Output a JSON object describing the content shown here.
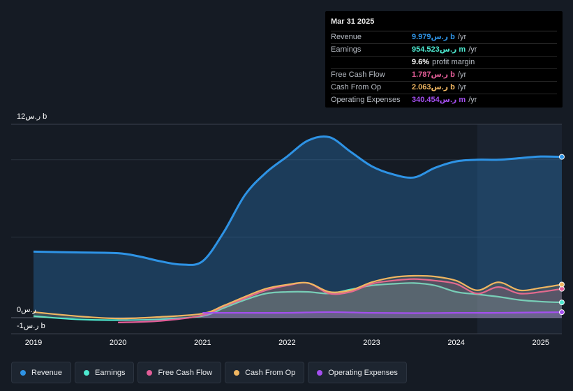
{
  "tooltip": {
    "date": "Mar 31 2025",
    "rows": [
      {
        "label": "Revenue",
        "value": "9.979ر.س b",
        "unit": "/yr",
        "color": "#2e93e5"
      },
      {
        "label": "Earnings",
        "value": "954.523ر.س m",
        "unit": "/yr",
        "color": "#4de8cf"
      },
      {
        "label": "",
        "value": "9.6%",
        "unit": "profit margin",
        "color": "#ffffff"
      },
      {
        "label": "Free Cash Flow",
        "value": "1.787ر.س b",
        "unit": "/yr",
        "color": "#e25d97"
      },
      {
        "label": "Cash From Op",
        "value": "2.063ر.س b",
        "unit": "/yr",
        "color": "#f0b661"
      },
      {
        "label": "Operating Expenses",
        "value": "340.454ر.س m",
        "unit": "/yr",
        "color": "#a44ff0"
      }
    ]
  },
  "legend": [
    {
      "label": "Revenue",
      "color": "#2e93e5"
    },
    {
      "label": "Earnings",
      "color": "#4de8cf"
    },
    {
      "label": "Free Cash Flow",
      "color": "#e25d97"
    },
    {
      "label": "Cash From Op",
      "color": "#f0b661"
    },
    {
      "label": "Operating Expenses",
      "color": "#a44ff0"
    }
  ],
  "chart_data": {
    "type": "area",
    "ylabels": {
      "top": "12ر.س b",
      "zero": "0ر.س",
      "bottom": "-1ر.س b"
    },
    "ylim": [
      -1,
      12
    ],
    "xlim": [
      2019.0,
      2025.25
    ],
    "x_ticks": [
      "2019",
      "2020",
      "2021",
      "2022",
      "2023",
      "2024",
      "2025"
    ],
    "forecast_start": 2024.25,
    "series": [
      {
        "name": "Revenue",
        "color": "#2e93e5",
        "x": [
          2019.0,
          2019.5,
          2020.0,
          2020.25,
          2020.5,
          2020.75,
          2021.0,
          2021.25,
          2021.5,
          2021.75,
          2022.0,
          2022.25,
          2022.5,
          2022.75,
          2023.0,
          2023.25,
          2023.5,
          2023.75,
          2024.0,
          2024.25,
          2024.5,
          2024.75,
          2025.0,
          2025.25
        ],
        "y": [
          4.1,
          4.05,
          4.0,
          3.8,
          3.5,
          3.3,
          3.5,
          5.3,
          7.6,
          9.0,
          10.0,
          11.0,
          11.2,
          10.3,
          9.4,
          8.9,
          8.7,
          9.3,
          9.7,
          9.8,
          9.8,
          9.9,
          10.0,
          9.98
        ]
      },
      {
        "name": "Earnings",
        "color": "#4de8cf",
        "x": [
          2019.0,
          2019.5,
          2020.0,
          2020.5,
          2021.0,
          2021.25,
          2021.5,
          2021.75,
          2022.0,
          2022.25,
          2022.5,
          2022.75,
          2023.0,
          2023.25,
          2023.5,
          2023.75,
          2024.0,
          2024.25,
          2024.5,
          2024.75,
          2025.0,
          2025.25
        ],
        "y": [
          0.1,
          -0.1,
          -0.15,
          -0.1,
          0.1,
          0.6,
          1.1,
          1.5,
          1.6,
          1.6,
          1.5,
          1.75,
          2.0,
          2.1,
          2.15,
          2.0,
          1.6,
          1.45,
          1.3,
          1.1,
          1.0,
          0.95
        ]
      },
      {
        "name": "Free Cash Flow",
        "color": "#e25d97",
        "x": [
          2020.0,
          2020.5,
          2021.0,
          2021.25,
          2021.5,
          2021.75,
          2022.0,
          2022.25,
          2022.5,
          2022.75,
          2023.0,
          2023.25,
          2023.5,
          2023.75,
          2024.0,
          2024.25,
          2024.5,
          2024.75,
          2025.0,
          2025.25
        ],
        "y": [
          -0.3,
          -0.2,
          0.15,
          0.7,
          1.2,
          1.7,
          2.0,
          2.15,
          1.5,
          1.6,
          2.1,
          2.3,
          2.4,
          2.3,
          2.1,
          1.5,
          1.9,
          1.5,
          1.6,
          1.79
        ]
      },
      {
        "name": "Cash From Op",
        "color": "#f0b661",
        "x": [
          2019.0,
          2019.5,
          2020.0,
          2020.5,
          2021.0,
          2021.25,
          2021.5,
          2021.75,
          2022.0,
          2022.25,
          2022.5,
          2022.75,
          2023.0,
          2023.25,
          2023.5,
          2023.75,
          2024.0,
          2024.25,
          2024.5,
          2024.75,
          2025.0,
          2025.25
        ],
        "y": [
          0.35,
          0.1,
          -0.05,
          0.05,
          0.25,
          0.75,
          1.3,
          1.8,
          2.05,
          2.15,
          1.6,
          1.7,
          2.2,
          2.5,
          2.6,
          2.55,
          2.3,
          1.7,
          2.2,
          1.7,
          1.85,
          2.06
        ]
      },
      {
        "name": "Operating Expenses",
        "color": "#a44ff0",
        "x": [
          2021.0,
          2021.5,
          2022.0,
          2022.5,
          2023.0,
          2023.5,
          2024.0,
          2024.5,
          2025.0,
          2025.25
        ],
        "y": [
          0.3,
          0.3,
          0.3,
          0.35,
          0.3,
          0.28,
          0.3,
          0.3,
          0.33,
          0.34
        ]
      }
    ]
  }
}
